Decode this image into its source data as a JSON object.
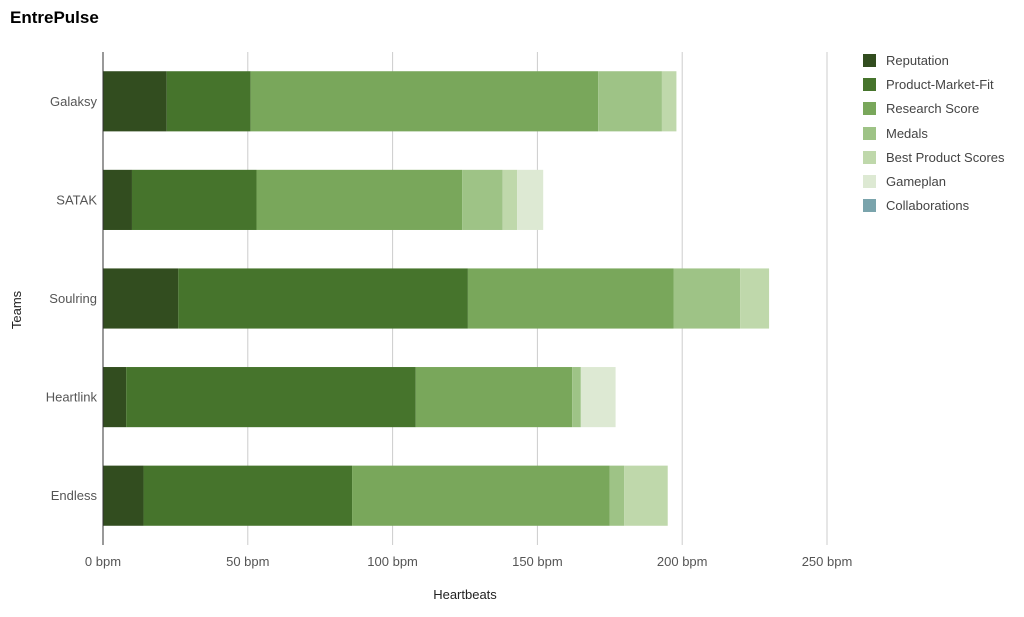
{
  "chart_data": {
    "type": "bar",
    "orientation": "horizontal",
    "stacked": true,
    "title": "EntrePulse",
    "xlabel": "Heartbeats",
    "ylabel": "Teams",
    "xlim": [
      0,
      250
    ],
    "x_ticks": [
      0,
      50,
      100,
      150,
      200,
      250
    ],
    "x_tick_labels": [
      "0 bpm",
      "50 bpm",
      "100 bpm",
      "150 bpm",
      "200 bpm",
      "250 bpm"
    ],
    "grid": true,
    "legend_position": "right",
    "categories": [
      "Galaksy",
      "SATAK",
      "Soulring",
      "Heartlink",
      "Endless"
    ],
    "series": [
      {
        "name": "Reputation",
        "color": "#324d1f",
        "values": [
          22,
          10,
          26,
          8,
          14
        ]
      },
      {
        "name": "Product-Market-Fit",
        "color": "#46742c",
        "values": [
          29,
          43,
          100,
          100,
          72
        ]
      },
      {
        "name": "Research Score",
        "color": "#79a75b",
        "values": [
          120,
          71,
          71,
          54,
          89
        ]
      },
      {
        "name": "Medals",
        "color": "#9ec386",
        "values": [
          22,
          14,
          23,
          3,
          5
        ]
      },
      {
        "name": "Best Product Scores",
        "color": "#bfd8ab",
        "values": [
          5,
          5,
          10,
          0,
          15
        ]
      },
      {
        "name": "Gameplan",
        "color": "#dde9d3",
        "values": [
          0,
          9,
          0,
          12,
          0
        ]
      },
      {
        "name": "Collaborations",
        "color": "#7aa4ac",
        "values": [
          0,
          0,
          0,
          0,
          0
        ]
      }
    ]
  }
}
